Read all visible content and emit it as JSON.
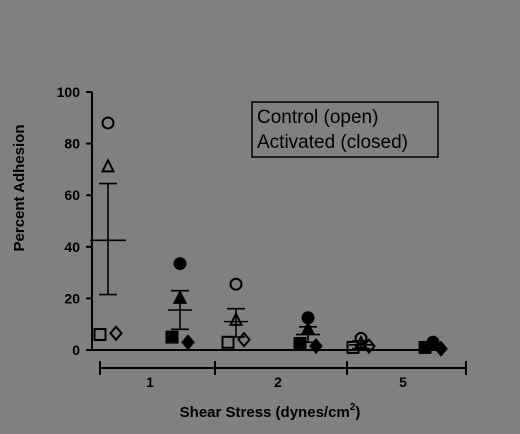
{
  "chart_data": {
    "type": "scatter",
    "xlabel": "Shear Stress  (dynes/cm",
    "xlabel_sup": "2",
    "xlabel_close": ")",
    "ylabel": "Percent Adhesion",
    "ylim": [
      0,
      100
    ],
    "yticks": [
      0,
      20,
      40,
      60,
      80,
      100
    ],
    "ytick_labels": [
      "0",
      "20",
      "40",
      "60",
      "80",
      "100"
    ],
    "categories": [
      "1",
      "2",
      "5"
    ],
    "legend": {
      "placement": "top-right",
      "lines": [
        "Control  (open)",
        "Activated (closed)"
      ]
    },
    "groups": [
      {
        "category": "1",
        "control": {
          "mean": 42.5,
          "upper": 64.5,
          "lower": 21.5,
          "points": [
            {
              "marker": "circle",
              "y": 88
            },
            {
              "marker": "triangle",
              "y": 71
            },
            {
              "marker": "square",
              "y": 6
            },
            {
              "marker": "diamond",
              "y": 6.5
            }
          ]
        },
        "activated": {
          "mean": 15.5,
          "upper": 23,
          "lower": 8,
          "points": [
            {
              "marker": "circle",
              "y": 33.5
            },
            {
              "marker": "triangle",
              "y": 20
            },
            {
              "marker": "square",
              "y": 5
            },
            {
              "marker": "diamond",
              "y": 3
            }
          ]
        }
      },
      {
        "category": "2",
        "control": {
          "mean": 11,
          "upper": 16,
          "lower": 5,
          "points": [
            {
              "marker": "circle",
              "y": 25.5
            },
            {
              "marker": "triangle",
              "y": 11.5
            },
            {
              "marker": "square",
              "y": 3
            },
            {
              "marker": "diamond",
              "y": 4
            }
          ]
        },
        "activated": {
          "mean": 6,
          "upper": 9,
          "lower": 3,
          "points": [
            {
              "marker": "circle",
              "y": 12.5
            },
            {
              "marker": "triangle",
              "y": 8
            },
            {
              "marker": "square",
              "y": 2.5
            },
            {
              "marker": "diamond",
              "y": 1.5
            }
          ]
        }
      },
      {
        "category": "5",
        "control": {
          "mean": 2,
          "upper": 3.5,
          "lower": 0.5,
          "points": [
            {
              "marker": "circle",
              "y": 4.5
            },
            {
              "marker": "triangle",
              "y": 2.5
            },
            {
              "marker": "square",
              "y": 1
            },
            {
              "marker": "diamond",
              "y": 1.5
            }
          ]
        },
        "activated": {
          "mean": 1.5,
          "upper": 2.5,
          "lower": 0.5,
          "points": [
            {
              "marker": "circle",
              "y": 3
            },
            {
              "marker": "triangle",
              "y": 2
            },
            {
              "marker": "square",
              "y": 1
            },
            {
              "marker": "diamond",
              "y": 0.5
            }
          ]
        }
      }
    ],
    "colors": {
      "background": "#808080",
      "ink": "#000000"
    }
  }
}
